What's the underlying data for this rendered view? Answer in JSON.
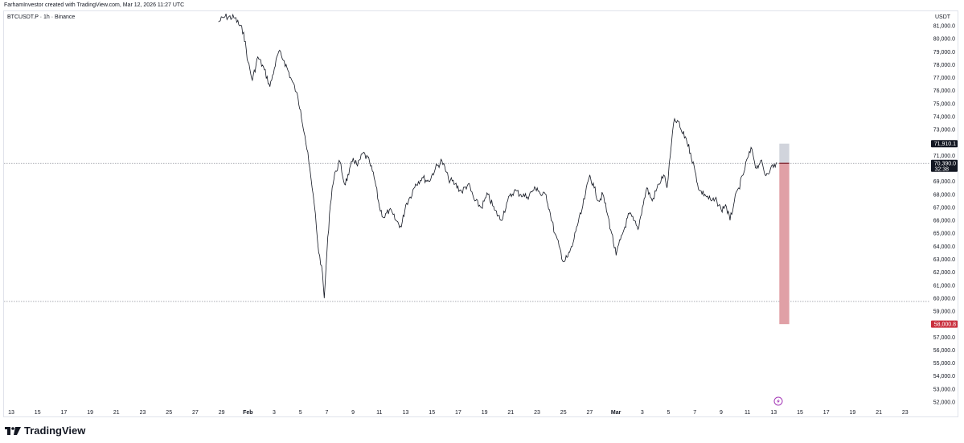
{
  "caption": "FarhamInvestor created with TradingView.com, Mar 12, 2026 11:27 UTC",
  "symbol_title": "BTCUSDT.P · 1h · Binance",
  "currency": "USDT",
  "brand": "TradingView",
  "icons": {
    "brand_logo": "tradingview-logo-icon",
    "event": "lightning-event-icon"
  },
  "colors": {
    "candle": "#131722",
    "stop_zone": "#e0a0a6",
    "target_zone": "#d1d4dc",
    "stop_tag": "#c9303e",
    "last_tag": "#131722",
    "line": "#787b86"
  },
  "chart_data": {
    "type": "line",
    "title": "",
    "xlabel": "",
    "ylabel": "",
    "ylim": [
      51500,
      81900
    ],
    "y_ticks": [
      "52,000.0",
      "53,000.0",
      "54,000.0",
      "55,000.0",
      "56,000.0",
      "57,000.0",
      "58,000.0",
      "59,000.0",
      "60,000.0",
      "61,000.0",
      "62,000.0",
      "63,000.0",
      "64,000.0",
      "65,000.0",
      "66,000.0",
      "67,000.0",
      "68,000.0",
      "69,000.0",
      "70,000.0",
      "71,000.0",
      "72,000.0",
      "73,000.0",
      "74,000.0",
      "75,000.0",
      "76,000.0",
      "77,000.0",
      "78,000.0",
      "79,000.0",
      "80,000.0",
      "81,000.0"
    ],
    "x_ticks": [
      "13",
      "15",
      "17",
      "19",
      "21",
      "23",
      "25",
      "27",
      "29",
      "Feb",
      "3",
      "5",
      "7",
      "9",
      "11",
      "13",
      "15",
      "17",
      "19",
      "21",
      "23",
      "25",
      "27",
      "Mar",
      "3",
      "5",
      "7",
      "9",
      "11",
      "13",
      "15",
      "17",
      "19",
      "21",
      "23"
    ],
    "series": [
      {
        "values": [
          {
            "x": "Jan 29",
            "y": 81300
          },
          {
            "x": "Jan 29",
            "y": 81700
          },
          {
            "x": "Jan 30",
            "y": 81600
          },
          {
            "x": "Jan 31",
            "y": 80500
          },
          {
            "x": "Jan 31",
            "y": 78200
          },
          {
            "x": "Jan 31",
            "y": 76800
          },
          {
            "x": "Feb 1",
            "y": 78600
          },
          {
            "x": "Feb 1",
            "y": 77600
          },
          {
            "x": "Feb 2",
            "y": 76300
          },
          {
            "x": "Feb 2",
            "y": 77700
          },
          {
            "x": "Feb 2",
            "y": 79000
          },
          {
            "x": "Feb 3",
            "y": 78300
          },
          {
            "x": "Feb 3",
            "y": 77000
          },
          {
            "x": "Feb 4",
            "y": 75900
          },
          {
            "x": "Feb 4",
            "y": 74500
          },
          {
            "x": "Feb 4",
            "y": 72500
          },
          {
            "x": "Feb 5",
            "y": 70500
          },
          {
            "x": "Feb 5",
            "y": 68500
          },
          {
            "x": "Feb 5",
            "y": 66500
          },
          {
            "x": "Feb 5",
            "y": 63500
          },
          {
            "x": "Feb 6",
            "y": 62500
          },
          {
            "x": "Feb 6",
            "y": 60000
          },
          {
            "x": "Feb 6",
            "y": 63500
          },
          {
            "x": "Feb 6",
            "y": 66500
          },
          {
            "x": "Feb 6",
            "y": 68500
          },
          {
            "x": "Feb 7",
            "y": 69800
          },
          {
            "x": "Feb 7",
            "y": 70500
          },
          {
            "x": "Feb 7",
            "y": 68800
          },
          {
            "x": "Feb 8",
            "y": 69500
          },
          {
            "x": "Feb 8",
            "y": 70800
          },
          {
            "x": "Feb 8",
            "y": 70200
          },
          {
            "x": "Feb 9",
            "y": 71200
          },
          {
            "x": "Feb 9",
            "y": 70500
          },
          {
            "x": "Feb 10",
            "y": 69000
          },
          {
            "x": "Feb 10",
            "y": 67000
          },
          {
            "x": "Feb 10",
            "y": 66200
          },
          {
            "x": "Feb 11",
            "y": 66800
          },
          {
            "x": "Feb 11",
            "y": 66000
          },
          {
            "x": "Feb 12",
            "y": 65500
          },
          {
            "x": "Feb 12",
            "y": 67200
          },
          {
            "x": "Feb 12",
            "y": 67800
          },
          {
            "x": "Feb 13",
            "y": 68800
          },
          {
            "x": "Feb 13",
            "y": 69300
          },
          {
            "x": "Feb 14",
            "y": 69000
          },
          {
            "x": "Feb 14",
            "y": 70000
          },
          {
            "x": "Feb 15",
            "y": 70600
          },
          {
            "x": "Feb 15",
            "y": 69200
          },
          {
            "x": "Feb 16",
            "y": 68800
          },
          {
            "x": "Feb 16",
            "y": 68200
          },
          {
            "x": "Feb 17",
            "y": 68800
          },
          {
            "x": "Feb 17",
            "y": 67500
          },
          {
            "x": "Feb 18",
            "y": 67000
          },
          {
            "x": "Feb 18",
            "y": 68000
          },
          {
            "x": "Feb 19",
            "y": 66800
          },
          {
            "x": "Feb 19",
            "y": 66000
          },
          {
            "x": "Feb 20",
            "y": 67500
          },
          {
            "x": "Feb 20",
            "y": 68300
          },
          {
            "x": "Feb 21",
            "y": 68000
          },
          {
            "x": "Feb 21",
            "y": 67800
          },
          {
            "x": "Feb 22",
            "y": 68300
          },
          {
            "x": "Feb 22",
            "y": 68500
          },
          {
            "x": "Feb 22",
            "y": 67900
          },
          {
            "x": "Feb 23",
            "y": 68000
          },
          {
            "x": "Feb 23",
            "y": 66500
          },
          {
            "x": "Feb 23",
            "y": 65000
          },
          {
            "x": "Feb 24",
            "y": 64000
          },
          {
            "x": "Feb 24",
            "y": 62800
          },
          {
            "x": "Feb 24",
            "y": 63200
          },
          {
            "x": "Feb 25",
            "y": 64000
          },
          {
            "x": "Feb 25",
            "y": 65500
          },
          {
            "x": "Feb 25",
            "y": 66500
          },
          {
            "x": "Feb 26",
            "y": 68000
          },
          {
            "x": "Feb 26",
            "y": 69500
          },
          {
            "x": "Feb 26",
            "y": 68500
          },
          {
            "x": "Feb 27",
            "y": 67500
          },
          {
            "x": "Feb 27",
            "y": 68000
          },
          {
            "x": "Feb 27",
            "y": 66500
          },
          {
            "x": "Feb 28",
            "y": 65000
          },
          {
            "x": "Feb 28",
            "y": 63300
          },
          {
            "x": "Feb 28",
            "y": 64500
          },
          {
            "x": "Mar 1",
            "y": 65500
          },
          {
            "x": "Mar 1",
            "y": 66500
          },
          {
            "x": "Mar 1",
            "y": 66000
          },
          {
            "x": "Mar 2",
            "y": 65300
          },
          {
            "x": "Mar 2",
            "y": 67000
          },
          {
            "x": "Mar 2",
            "y": 68500
          },
          {
            "x": "Mar 3",
            "y": 67500
          },
          {
            "x": "Mar 3",
            "y": 68800
          },
          {
            "x": "Mar 4",
            "y": 69500
          },
          {
            "x": "Mar 4",
            "y": 68500
          },
          {
            "x": "Mar 4",
            "y": 71000
          },
          {
            "x": "Mar 4",
            "y": 73500
          },
          {
            "x": "Mar 5",
            "y": 73700
          },
          {
            "x": "Mar 5",
            "y": 72800
          },
          {
            "x": "Mar 5",
            "y": 72300
          },
          {
            "x": "Mar 6",
            "y": 71200
          },
          {
            "x": "Mar 6",
            "y": 69800
          },
          {
            "x": "Mar 6",
            "y": 68300
          },
          {
            "x": "Mar 7",
            "y": 68000
          },
          {
            "x": "Mar 7",
            "y": 67500
          },
          {
            "x": "Mar 8",
            "y": 67500
          },
          {
            "x": "Mar 8",
            "y": 66800
          },
          {
            "x": "Mar 8",
            "y": 67200
          },
          {
            "x": "Mar 9",
            "y": 66000
          },
          {
            "x": "Mar 9",
            "y": 67500
          },
          {
            "x": "Mar 9",
            "y": 68500
          },
          {
            "x": "Mar 10",
            "y": 69500
          },
          {
            "x": "Mar 10",
            "y": 70800
          },
          {
            "x": "Mar 10",
            "y": 71500
          },
          {
            "x": "Mar 11",
            "y": 70000
          },
          {
            "x": "Mar 11",
            "y": 70600
          },
          {
            "x": "Mar 11",
            "y": 69500
          },
          {
            "x": "Mar 12",
            "y": 70000
          },
          {
            "x": "Mar 12",
            "y": 70390
          }
        ]
      }
    ],
    "horizontal_lines": [
      {
        "y": 70390,
        "style": "dotted"
      },
      {
        "y": 59750,
        "style": "dotted"
      }
    ],
    "position": {
      "target_top": 71910.1,
      "entry": 70390.0,
      "stop": 58000.8,
      "start": "Mar 12",
      "end": "Mar 13"
    },
    "price_labels": [
      {
        "text": "71,910.1",
        "y": 71910.1,
        "kind": "target"
      },
      {
        "text": "70,390.0",
        "sub": "32:38",
        "y": 70390.0,
        "kind": "last"
      },
      {
        "text": "58,000.8",
        "y": 58000.8,
        "kind": "stop"
      }
    ],
    "grid": false,
    "legend": "none"
  }
}
